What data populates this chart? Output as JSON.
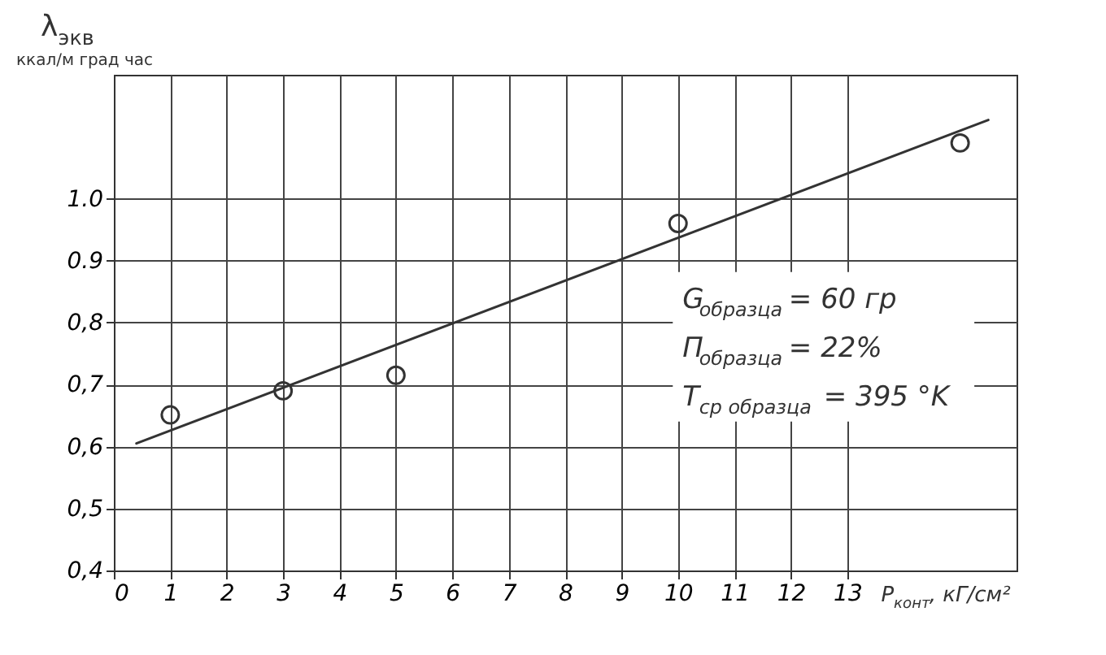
{
  "chart_data": {
    "type": "scatter",
    "ylabel": "λ$_{экв}$ ккал/м град час",
    "xlabel": "P$_{конт}$, кГ/см²",
    "series": [
      {
        "color": "#333333",
        "marker": "circle",
        "x": [
          1,
          3,
          5,
          10,
          15
        ],
        "values": [
          0.651,
          0.69,
          0.715,
          0.96,
          1.09
        ]
      },
      {
        "type": "line",
        "color": "#333333",
        "x": [
          0.4,
          15.5
        ],
        "values": [
          0.605,
          1.127
        ]
      }
    ],
    "xlim": [
      0,
      16
    ],
    "xticks": [
      0,
      1,
      2,
      3,
      4,
      5,
      6,
      7,
      8,
      9,
      10,
      11,
      12,
      13
    ],
    "ylim": [
      0.4,
      1.2
    ],
    "yticks": [
      {
        "value": 0.4,
        "label": "0,4"
      },
      {
        "value": 0.5,
        "label": "0,5"
      },
      {
        "value": 0.6,
        "label": "0,6"
      },
      {
        "value": 0.7,
        "label": "0,7"
      },
      {
        "value": 0.8,
        "label": "0,8"
      },
      {
        "value": 0.9,
        "label": "0.9"
      },
      {
        "value": 1.0,
        "label": "1.0"
      }
    ],
    "grid": true,
    "annotations": [
      "G$_{образца}$ = 60 гр",
      "П$_{образца}$ = 22%",
      "T$_{ср образца}$ = 395 °K"
    ]
  }
}
